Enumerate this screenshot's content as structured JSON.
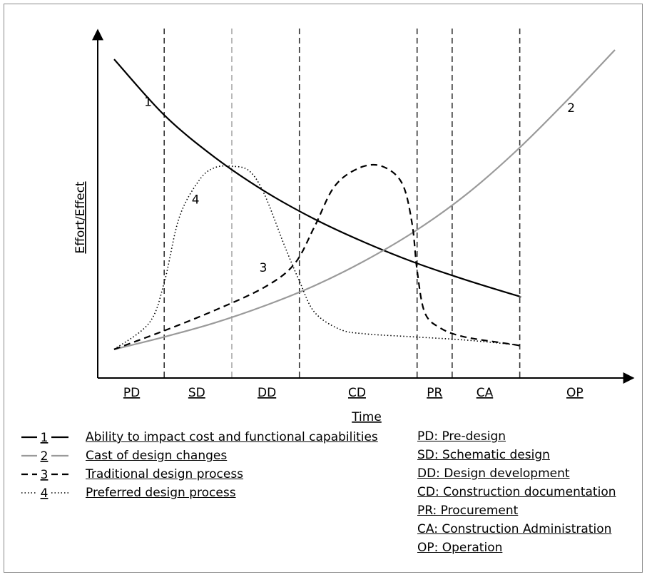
{
  "chart_data": {
    "type": "line",
    "ylabel": "Effort/Effect",
    "xlabel": "Time",
    "x_domain": [
      0,
      10
    ],
    "y_domain": [
      0,
      10
    ],
    "phases": [
      "PD",
      "SD",
      "DD",
      "CD",
      "PR",
      "CA",
      "OP"
    ],
    "phase_boundaries": [
      1.0,
      2.35,
      3.7,
      6.05,
      6.75,
      8.1
    ],
    "phase_label_x": [
      0.35,
      1.65,
      3.05,
      4.85,
      6.4,
      7.4,
      9.2
    ],
    "series": [
      {
        "id": "1",
        "name": "Ability to impact cost and functional capabilities",
        "color": "#000000",
        "dash": "solid",
        "label_at": [
          0.6,
          8.2
        ],
        "points": [
          [
            0.0,
            9.7
          ],
          [
            1.0,
            7.9
          ],
          [
            2.0,
            6.55
          ],
          [
            3.0,
            5.45
          ],
          [
            4.0,
            4.55
          ],
          [
            5.0,
            3.8
          ],
          [
            6.0,
            3.15
          ],
          [
            7.0,
            2.6
          ],
          [
            8.0,
            2.1
          ],
          [
            8.1,
            2.05
          ]
        ]
      },
      {
        "id": "2",
        "name": "Cast of design changes",
        "color": "#9a9a9a",
        "dash": "solid",
        "label_at": [
          9.05,
          8.0
        ],
        "points": [
          [
            0.0,
            0.35
          ],
          [
            1.0,
            0.75
          ],
          [
            2.0,
            1.2
          ],
          [
            3.0,
            1.75
          ],
          [
            4.0,
            2.4
          ],
          [
            5.0,
            3.2
          ],
          [
            6.0,
            4.15
          ],
          [
            7.0,
            5.3
          ],
          [
            8.0,
            6.7
          ],
          [
            9.0,
            8.3
          ],
          [
            10.0,
            10.0
          ]
        ]
      },
      {
        "id": "3",
        "name": "Traditional design process",
        "color": "#000000",
        "dash": "dashed",
        "label_at": [
          2.9,
          2.85
        ],
        "points": [
          [
            0.0,
            0.35
          ],
          [
            1.0,
            0.95
          ],
          [
            2.0,
            1.6
          ],
          [
            3.0,
            2.35
          ],
          [
            3.6,
            3.1
          ],
          [
            4.0,
            4.3
          ],
          [
            4.4,
            5.6
          ],
          [
            4.9,
            6.2
          ],
          [
            5.35,
            6.25
          ],
          [
            5.75,
            5.7
          ],
          [
            5.95,
            4.4
          ],
          [
            6.05,
            2.9
          ],
          [
            6.2,
            1.55
          ],
          [
            6.5,
            1.05
          ],
          [
            7.0,
            0.75
          ],
          [
            8.0,
            0.5
          ],
          [
            8.1,
            0.45
          ]
        ]
      },
      {
        "id": "4",
        "name": "Preferred design process",
        "color": "#000000",
        "dash": "dotted",
        "label_at": [
          1.55,
          5.05
        ],
        "points": [
          [
            0.0,
            0.35
          ],
          [
            0.7,
            1.2
          ],
          [
            1.0,
            2.5
          ],
          [
            1.3,
            4.6
          ],
          [
            1.7,
            5.8
          ],
          [
            2.0,
            6.2
          ],
          [
            2.35,
            6.25
          ],
          [
            2.7,
            6.1
          ],
          [
            3.0,
            5.35
          ],
          [
            3.4,
            3.7
          ],
          [
            3.7,
            2.55
          ],
          [
            4.0,
            1.55
          ],
          [
            4.5,
            1.0
          ],
          [
            5.0,
            0.85
          ],
          [
            6.0,
            0.75
          ],
          [
            7.0,
            0.65
          ],
          [
            8.0,
            0.5
          ],
          [
            8.1,
            0.45
          ]
        ]
      }
    ],
    "legend_position": "bottom-left",
    "grid": false
  },
  "legend": {
    "items": [
      {
        "num": "1",
        "label": "Ability to impact cost and functional capabilities",
        "color": "#000000",
        "dash": "solid"
      },
      {
        "num": "2",
        "label": "Cast of design changes",
        "color": "#9a9a9a",
        "dash": "solid"
      },
      {
        "num": "3",
        "label": "Traditional design process",
        "color": "#000000",
        "dash": "dashed"
      },
      {
        "num": "4",
        "label": "Preferred design process",
        "color": "#000000",
        "dash": "dotted"
      }
    ]
  },
  "abbreviations": [
    "PD: Pre-design",
    "SD: Schematic design",
    "DD: Design development",
    "CD: Construction documentation",
    "PR: Procurement",
    "CA: Construction Administration",
    "OP: Operation"
  ]
}
